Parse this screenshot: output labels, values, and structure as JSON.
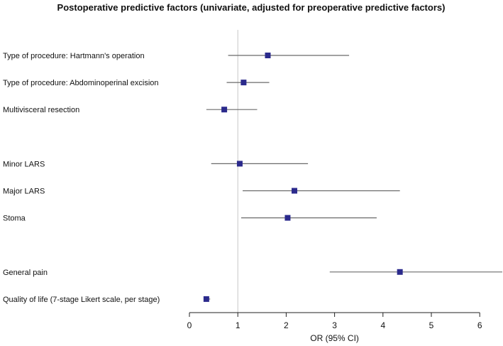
{
  "chart_data": {
    "type": "forest",
    "title": "Postoperative predictive factors (univariate, adjusted for preoperative predictive factors)",
    "xlabel": "OR (95% CI)",
    "xlim": [
      0,
      6.5
    ],
    "xticks": [
      0,
      1,
      2,
      3,
      4,
      5,
      6
    ],
    "reference_line": 1,
    "marker_color": "#2b2a8c",
    "rows": [
      {
        "label": "Type of procedure: Hartmann's operation",
        "estimate": 1.62,
        "lower": 0.8,
        "upper": 3.3,
        "slot": 0
      },
      {
        "label": "Type of procedure: Abdominoperinal excision",
        "estimate": 1.12,
        "lower": 0.77,
        "upper": 1.65,
        "slot": 1
      },
      {
        "label": "Multivisceral resection",
        "estimate": 0.72,
        "lower": 0.35,
        "upper": 1.4,
        "slot": 2
      },
      {
        "label": "Minor LARS",
        "estimate": 1.04,
        "lower": 0.45,
        "upper": 2.45,
        "slot": 4
      },
      {
        "label": "Major LARS",
        "estimate": 2.17,
        "lower": 1.1,
        "upper": 4.35,
        "slot": 5
      },
      {
        "label": "Stoma",
        "estimate": 2.03,
        "lower": 1.07,
        "upper": 3.87,
        "slot": 6
      },
      {
        "label": "General pain",
        "estimate": 4.35,
        "lower": 2.9,
        "upper": 6.5,
        "slot": 8
      },
      {
        "label": "Quality of life (7-stage Likert scale, per stage)",
        "estimate": 0.35,
        "lower": 0.3,
        "upper": 0.43,
        "slot": 9
      }
    ]
  }
}
